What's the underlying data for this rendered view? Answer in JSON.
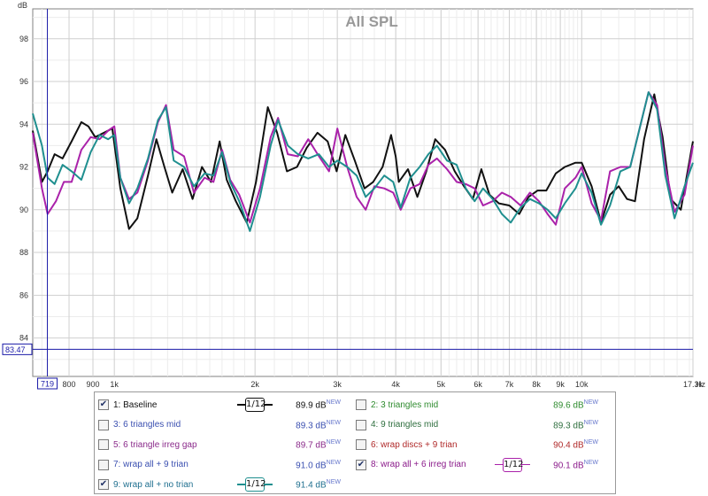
{
  "chart_data": {
    "type": "line",
    "title": "All SPL",
    "ylabel": "dB",
    "xlabel": "Hz",
    "x_scale": "log",
    "xlim": [
      669,
      17300
    ],
    "ylim": [
      82.2,
      99.4
    ],
    "grid": true,
    "y_ticks": [
      {
        "value": 84,
        "label": "84"
      },
      {
        "value": 86,
        "label": "86"
      },
      {
        "value": 88,
        "label": "88"
      },
      {
        "value": 90,
        "label": "90"
      },
      {
        "value": 92,
        "label": "92"
      },
      {
        "value": 94,
        "label": "94"
      },
      {
        "value": 96,
        "label": "96"
      },
      {
        "value": 98,
        "label": "98"
      }
    ],
    "x_ticks": [
      {
        "value": 800,
        "label": "800"
      },
      {
        "value": 900,
        "label": "900"
      },
      {
        "value": 1000,
        "label": "1k"
      },
      {
        "value": 2000,
        "label": "2k"
      },
      {
        "value": 3000,
        "label": "3k"
      },
      {
        "value": 4000,
        "label": "4k"
      },
      {
        "value": 5000,
        "label": "5k"
      },
      {
        "value": 6000,
        "label": "6k"
      },
      {
        "value": 7000,
        "label": "7k"
      },
      {
        "value": 8000,
        "label": "8k"
      },
      {
        "value": 9000,
        "label": "9k"
      },
      {
        "value": 10000,
        "label": "10k"
      },
      {
        "value": 17300,
        "label": "17.3k"
      }
    ],
    "x_unit_label": "Hz",
    "cursor": {
      "x_value": 719,
      "x_label": "719",
      "y_value": 83.47,
      "y_label": "83.47"
    },
    "series": [
      {
        "name": "1: Baseline",
        "color": "#111111",
        "points": [
          [
            669,
            93.7
          ],
          [
            700,
            91.3
          ],
          [
            720,
            91.8
          ],
          [
            745,
            92.6
          ],
          [
            775,
            92.4
          ],
          [
            810,
            93.2
          ],
          [
            850,
            94.1
          ],
          [
            880,
            93.9
          ],
          [
            910,
            93.4
          ],
          [
            950,
            93.6
          ],
          [
            990,
            93.8
          ],
          [
            1030,
            91.0
          ],
          [
            1075,
            89.1
          ],
          [
            1120,
            89.6
          ],
          [
            1180,
            91.6
          ],
          [
            1230,
            93.3
          ],
          [
            1280,
            92.0
          ],
          [
            1330,
            90.8
          ],
          [
            1400,
            91.9
          ],
          [
            1470,
            90.5
          ],
          [
            1540,
            92.0
          ],
          [
            1610,
            91.3
          ],
          [
            1680,
            93.2
          ],
          [
            1740,
            91.4
          ],
          [
            1820,
            90.4
          ],
          [
            1920,
            89.4
          ],
          [
            2010,
            91.3
          ],
          [
            2130,
            94.8
          ],
          [
            2230,
            93.6
          ],
          [
            2340,
            91.8
          ],
          [
            2460,
            92.0
          ],
          [
            2580,
            92.9
          ],
          [
            2720,
            93.6
          ],
          [
            2860,
            93.2
          ],
          [
            2990,
            91.8
          ],
          [
            3120,
            93.5
          ],
          [
            3270,
            92.3
          ],
          [
            3430,
            91.0
          ],
          [
            3580,
            91.3
          ],
          [
            3750,
            92.0
          ],
          [
            3910,
            93.5
          ],
          [
            4000,
            92.5
          ],
          [
            4060,
            91.3
          ],
          [
            4250,
            91.9
          ],
          [
            4450,
            90.6
          ],
          [
            4650,
            91.8
          ],
          [
            4860,
            93.3
          ],
          [
            5100,
            92.8
          ],
          [
            5350,
            91.8
          ],
          [
            5600,
            91.1
          ],
          [
            5850,
            90.5
          ],
          [
            6100,
            91.9
          ],
          [
            6350,
            90.7
          ],
          [
            6650,
            90.3
          ],
          [
            7000,
            90.2
          ],
          [
            7350,
            89.8
          ],
          [
            7700,
            90.6
          ],
          [
            8050,
            90.9
          ],
          [
            8400,
            90.9
          ],
          [
            8800,
            91.7
          ],
          [
            9200,
            92.0
          ],
          [
            9700,
            92.2
          ],
          [
            10000,
            92.2
          ],
          [
            10500,
            91.1
          ],
          [
            11000,
            89.4
          ],
          [
            11500,
            90.7
          ],
          [
            12000,
            91.1
          ],
          [
            12500,
            90.5
          ],
          [
            13000,
            90.4
          ],
          [
            13600,
            93.3
          ],
          [
            14300,
            95.4
          ],
          [
            14900,
            93.4
          ],
          [
            15500,
            90.5
          ],
          [
            16300,
            90.0
          ],
          [
            17300,
            93.2
          ]
        ]
      },
      {
        "name": "8: wrap all + 6 irreg trian",
        "color": "#aa22aa",
        "points": [
          [
            669,
            93.6
          ],
          [
            700,
            91.0
          ],
          [
            720,
            89.8
          ],
          [
            750,
            90.4
          ],
          [
            780,
            91.3
          ],
          [
            810,
            91.3
          ],
          [
            850,
            92.8
          ],
          [
            890,
            93.4
          ],
          [
            930,
            93.3
          ],
          [
            970,
            93.7
          ],
          [
            1000,
            93.9
          ],
          [
            1030,
            91.5
          ],
          [
            1075,
            90.5
          ],
          [
            1120,
            90.8
          ],
          [
            1180,
            92.3
          ],
          [
            1240,
            94.1
          ],
          [
            1290,
            94.9
          ],
          [
            1340,
            92.8
          ],
          [
            1410,
            92.5
          ],
          [
            1480,
            90.8
          ],
          [
            1560,
            91.5
          ],
          [
            1630,
            91.3
          ],
          [
            1700,
            92.8
          ],
          [
            1770,
            91.4
          ],
          [
            1850,
            90.7
          ],
          [
            1950,
            89.4
          ],
          [
            2050,
            91.0
          ],
          [
            2160,
            93.4
          ],
          [
            2240,
            94.3
          ],
          [
            2350,
            92.6
          ],
          [
            2470,
            92.5
          ],
          [
            2600,
            93.3
          ],
          [
            2740,
            92.5
          ],
          [
            2880,
            91.8
          ],
          [
            3000,
            93.8
          ],
          [
            3150,
            92.0
          ],
          [
            3300,
            90.6
          ],
          [
            3450,
            90.0
          ],
          [
            3600,
            91.1
          ],
          [
            3780,
            91.0
          ],
          [
            3950,
            90.8
          ],
          [
            4100,
            90.0
          ],
          [
            4300,
            91.0
          ],
          [
            4500,
            91.2
          ],
          [
            4700,
            92.1
          ],
          [
            4900,
            92.4
          ],
          [
            5150,
            91.9
          ],
          [
            5400,
            91.3
          ],
          [
            5650,
            91.2
          ],
          [
            5900,
            91.0
          ],
          [
            6150,
            90.2
          ],
          [
            6450,
            90.4
          ],
          [
            6750,
            90.8
          ],
          [
            7050,
            90.6
          ],
          [
            7400,
            90.2
          ],
          [
            7750,
            90.8
          ],
          [
            8100,
            90.4
          ],
          [
            8450,
            89.8
          ],
          [
            8800,
            89.3
          ],
          [
            9200,
            91.0
          ],
          [
            9700,
            91.5
          ],
          [
            10000,
            92.0
          ],
          [
            10500,
            90.3
          ],
          [
            11000,
            89.5
          ],
          [
            11500,
            91.8
          ],
          [
            12100,
            92.0
          ],
          [
            12700,
            92.0
          ],
          [
            13300,
            93.8
          ],
          [
            13900,
            95.5
          ],
          [
            14500,
            94.9
          ],
          [
            15100,
            92.0
          ],
          [
            15800,
            89.9
          ],
          [
            16600,
            90.7
          ],
          [
            17300,
            93.0
          ]
        ]
      },
      {
        "name": "9: wrap all + no trian",
        "color": "#1f8f8f",
        "points": [
          [
            669,
            94.5
          ],
          [
            700,
            93.0
          ],
          [
            720,
            91.5
          ],
          [
            745,
            91.2
          ],
          [
            775,
            92.1
          ],
          [
            810,
            91.8
          ],
          [
            850,
            91.4
          ],
          [
            890,
            92.7
          ],
          [
            930,
            93.5
          ],
          [
            970,
            93.3
          ],
          [
            1000,
            93.5
          ],
          [
            1030,
            91.5
          ],
          [
            1075,
            90.3
          ],
          [
            1120,
            91.0
          ],
          [
            1180,
            92.4
          ],
          [
            1240,
            94.2
          ],
          [
            1290,
            94.8
          ],
          [
            1340,
            92.3
          ],
          [
            1410,
            92.0
          ],
          [
            1480,
            91.1
          ],
          [
            1560,
            91.7
          ],
          [
            1630,
            91.6
          ],
          [
            1700,
            92.7
          ],
          [
            1770,
            91.3
          ],
          [
            1850,
            90.4
          ],
          [
            1950,
            89.0
          ],
          [
            2050,
            90.6
          ],
          [
            2160,
            93.0
          ],
          [
            2240,
            94.2
          ],
          [
            2350,
            93.0
          ],
          [
            2470,
            92.6
          ],
          [
            2600,
            92.4
          ],
          [
            2740,
            92.6
          ],
          [
            2880,
            92.0
          ],
          [
            3000,
            92.3
          ],
          [
            3150,
            92.0
          ],
          [
            3300,
            91.6
          ],
          [
            3450,
            90.6
          ],
          [
            3600,
            91.0
          ],
          [
            3780,
            91.6
          ],
          [
            3950,
            91.3
          ],
          [
            4100,
            90.1
          ],
          [
            4300,
            91.5
          ],
          [
            4500,
            92.0
          ],
          [
            4700,
            92.6
          ],
          [
            4900,
            93.0
          ],
          [
            5150,
            92.3
          ],
          [
            5400,
            92.1
          ],
          [
            5650,
            91.0
          ],
          [
            5900,
            90.4
          ],
          [
            6150,
            91.0
          ],
          [
            6450,
            90.5
          ],
          [
            6750,
            89.8
          ],
          [
            7050,
            89.4
          ],
          [
            7400,
            90.1
          ],
          [
            7750,
            90.5
          ],
          [
            8100,
            90.3
          ],
          [
            8450,
            90.0
          ],
          [
            8800,
            89.6
          ],
          [
            9200,
            90.3
          ],
          [
            9700,
            91.0
          ],
          [
            10000,
            91.7
          ],
          [
            10500,
            90.8
          ],
          [
            11000,
            89.3
          ],
          [
            11500,
            90.2
          ],
          [
            12100,
            91.8
          ],
          [
            12700,
            92.0
          ],
          [
            13300,
            93.8
          ],
          [
            13900,
            95.5
          ],
          [
            14500,
            94.7
          ],
          [
            15100,
            91.6
          ],
          [
            15800,
            89.6
          ],
          [
            16600,
            91.1
          ],
          [
            17300,
            92.2
          ]
        ]
      }
    ]
  },
  "legend": {
    "items": [
      {
        "label": "1: Baseline",
        "value": "89.9 dB",
        "badge": "NEW",
        "checked": true,
        "text_color": "#111111",
        "smoothing": "1/12",
        "smoothing_color": "#111111"
      },
      {
        "label": "2: 3 triangles mid",
        "value": "89.6 dB",
        "badge": "NEW",
        "checked": false,
        "text_color": "#2e8b2e",
        "smoothing": "",
        "smoothing_color": ""
      },
      {
        "label": "3: 6 triangles mid",
        "value": "89.3 dB",
        "badge": "NEW",
        "checked": false,
        "text_color": "#3a4fb0",
        "smoothing": "",
        "smoothing_color": ""
      },
      {
        "label": "4: 9 triangles mid",
        "value": "89.3 dB",
        "badge": "NEW",
        "checked": false,
        "text_color": "#2e6e3e",
        "smoothing": "",
        "smoothing_color": ""
      },
      {
        "label": "5: 6 triangle irreg gap",
        "value": "89.7 dB",
        "badge": "NEW",
        "checked": false,
        "text_color": "#8a2a8a",
        "smoothing": "",
        "smoothing_color": ""
      },
      {
        "label": "6: wrap discs + 9 trian",
        "value": "90.4 dB",
        "badge": "NEW",
        "checked": false,
        "text_color": "#b02a2a",
        "smoothing": "",
        "smoothing_color": ""
      },
      {
        "label": "7: wrap all + 9 trian",
        "value": "91.0 dB",
        "badge": "NEW",
        "checked": false,
        "text_color": "#3a4fb0",
        "smoothing": "",
        "smoothing_color": ""
      },
      {
        "label": "8: wrap all + 6 irreg trian",
        "value": "90.1 dB",
        "badge": "NEW",
        "checked": true,
        "text_color": "#8a1a8a",
        "smoothing": "1/12",
        "smoothing_color": "#aa22aa"
      },
      {
        "label": "9: wrap all + no trian",
        "value": "91.4 dB",
        "badge": "NEW",
        "checked": true,
        "text_color": "#1f6f8f",
        "smoothing": "1/12",
        "smoothing_color": "#1f8f8f"
      }
    ]
  }
}
